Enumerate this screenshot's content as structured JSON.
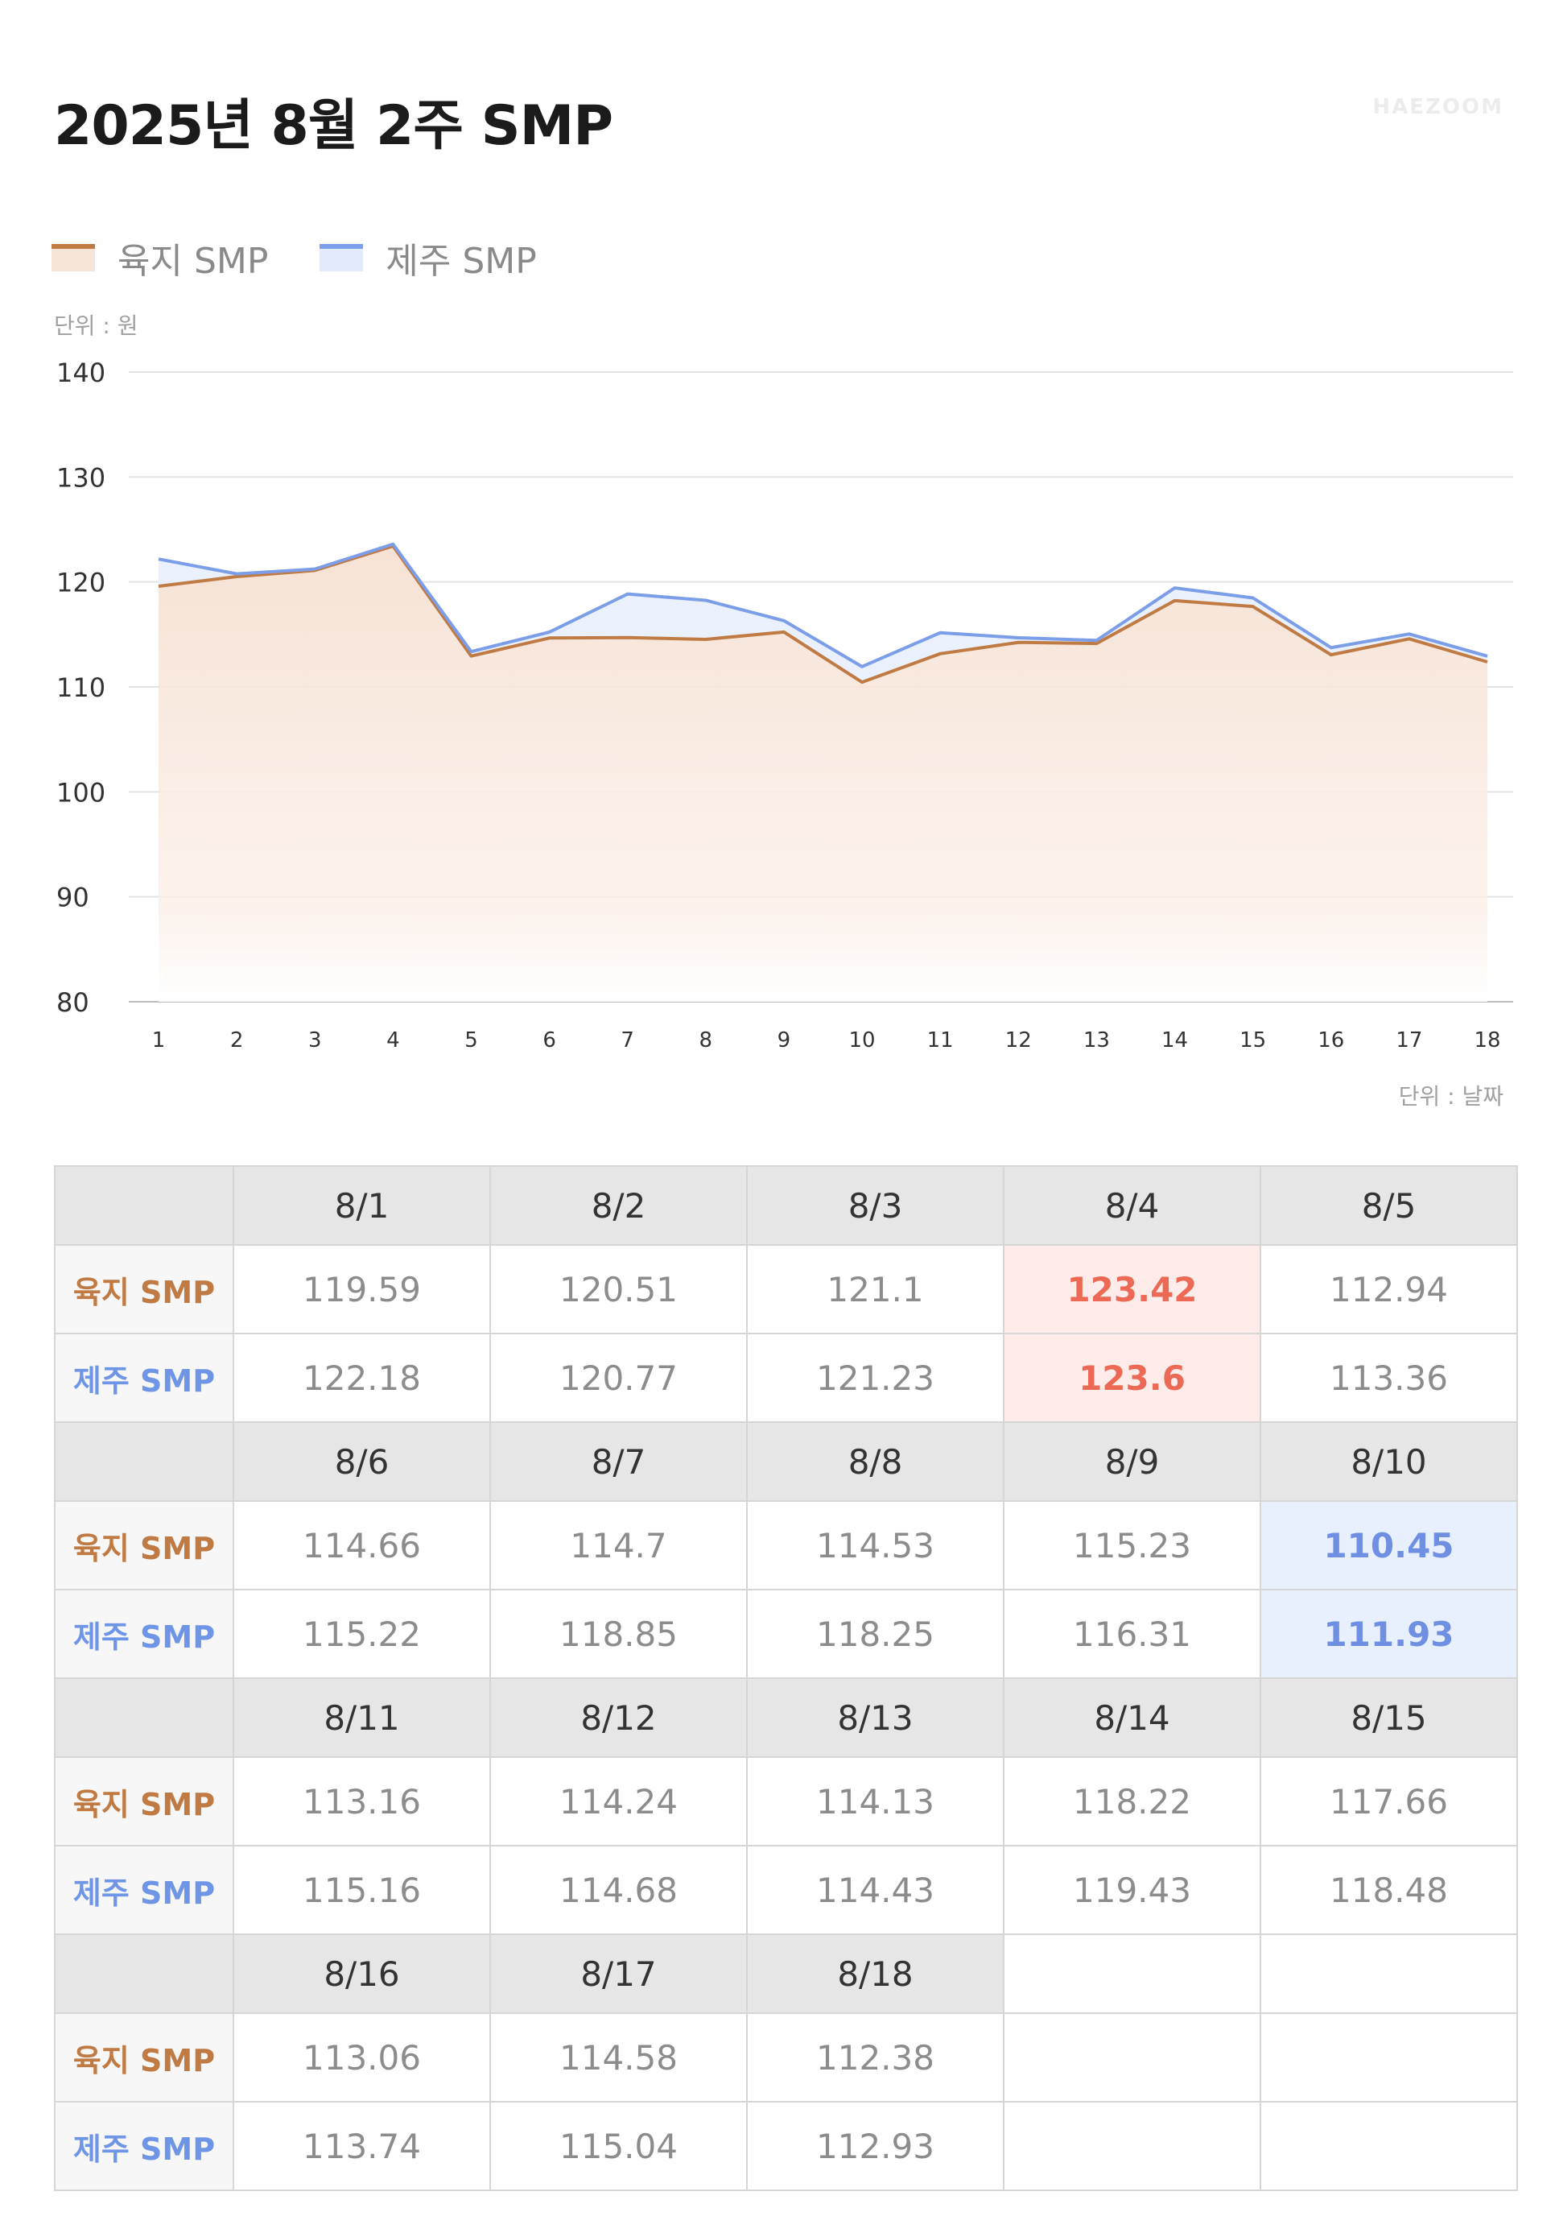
{
  "page": {
    "title": "2025년 8월 2주 SMP",
    "brand": "HAEZOOM",
    "unit_y": "단위 : 원",
    "unit_x": "단위 : 날짜"
  },
  "legend": [
    {
      "label": "육지 SMP",
      "color": "#c07a43",
      "fill": "#f7e4d8"
    },
    {
      "label": "제주 SMP",
      "color": "#7c9ee8",
      "fill": "#e3ebfb"
    }
  ],
  "chart_data": {
    "type": "area",
    "x": [
      1,
      2,
      3,
      4,
      5,
      6,
      7,
      8,
      9,
      10,
      11,
      12,
      13,
      14,
      15,
      16,
      17,
      18
    ],
    "series": [
      {
        "name": "육지 SMP",
        "color": "#c07a43",
        "values": [
          119.59,
          120.51,
          121.1,
          123.42,
          112.94,
          114.66,
          114.7,
          114.53,
          115.23,
          110.45,
          113.16,
          114.24,
          114.13,
          118.22,
          117.66,
          113.06,
          114.58,
          112.38
        ]
      },
      {
        "name": "제주 SMP",
        "color": "#7c9ee8",
        "values": [
          122.18,
          120.77,
          121.23,
          123.6,
          113.36,
          115.22,
          118.85,
          118.25,
          116.31,
          111.93,
          115.16,
          114.68,
          114.43,
          119.43,
          118.48,
          113.74,
          115.04,
          112.93
        ]
      }
    ],
    "ylim": [
      80,
      140
    ],
    "yticks": [
      80,
      90,
      100,
      110,
      120,
      130,
      140
    ],
    "xlabel": "단위 : 날짜",
    "ylabel": "단위 : 원",
    "grid": true,
    "legend_position": "top-left"
  },
  "table": {
    "row_labels": [
      "육지 SMP",
      "제주 SMP"
    ],
    "groups": [
      {
        "dates": [
          "8/1",
          "8/2",
          "8/3",
          "8/4",
          "8/5"
        ],
        "land": [
          "119.59",
          "120.51",
          "121.1",
          "123.42",
          "112.94"
        ],
        "jeju": [
          "122.18",
          "120.77",
          "121.23",
          "123.6",
          "113.36"
        ]
      },
      {
        "dates": [
          "8/6",
          "8/7",
          "8/8",
          "8/9",
          "8/10"
        ],
        "land": [
          "114.66",
          "114.7",
          "114.53",
          "115.23",
          "110.45"
        ],
        "jeju": [
          "115.22",
          "118.85",
          "118.25",
          "116.31",
          "111.93"
        ]
      },
      {
        "dates": [
          "8/11",
          "8/12",
          "8/13",
          "8/14",
          "8/15"
        ],
        "land": [
          "113.16",
          "114.24",
          "114.13",
          "118.22",
          "117.66"
        ],
        "jeju": [
          "115.16",
          "114.68",
          "114.43",
          "119.43",
          "118.48"
        ]
      },
      {
        "dates": [
          "8/16",
          "8/17",
          "8/18"
        ],
        "land": [
          "113.06",
          "114.58",
          "112.38"
        ],
        "jeju": [
          "113.74",
          "115.04",
          "112.93"
        ]
      }
    ],
    "highlights": {
      "max_date": "8/4",
      "min_date": "8/10"
    }
  }
}
